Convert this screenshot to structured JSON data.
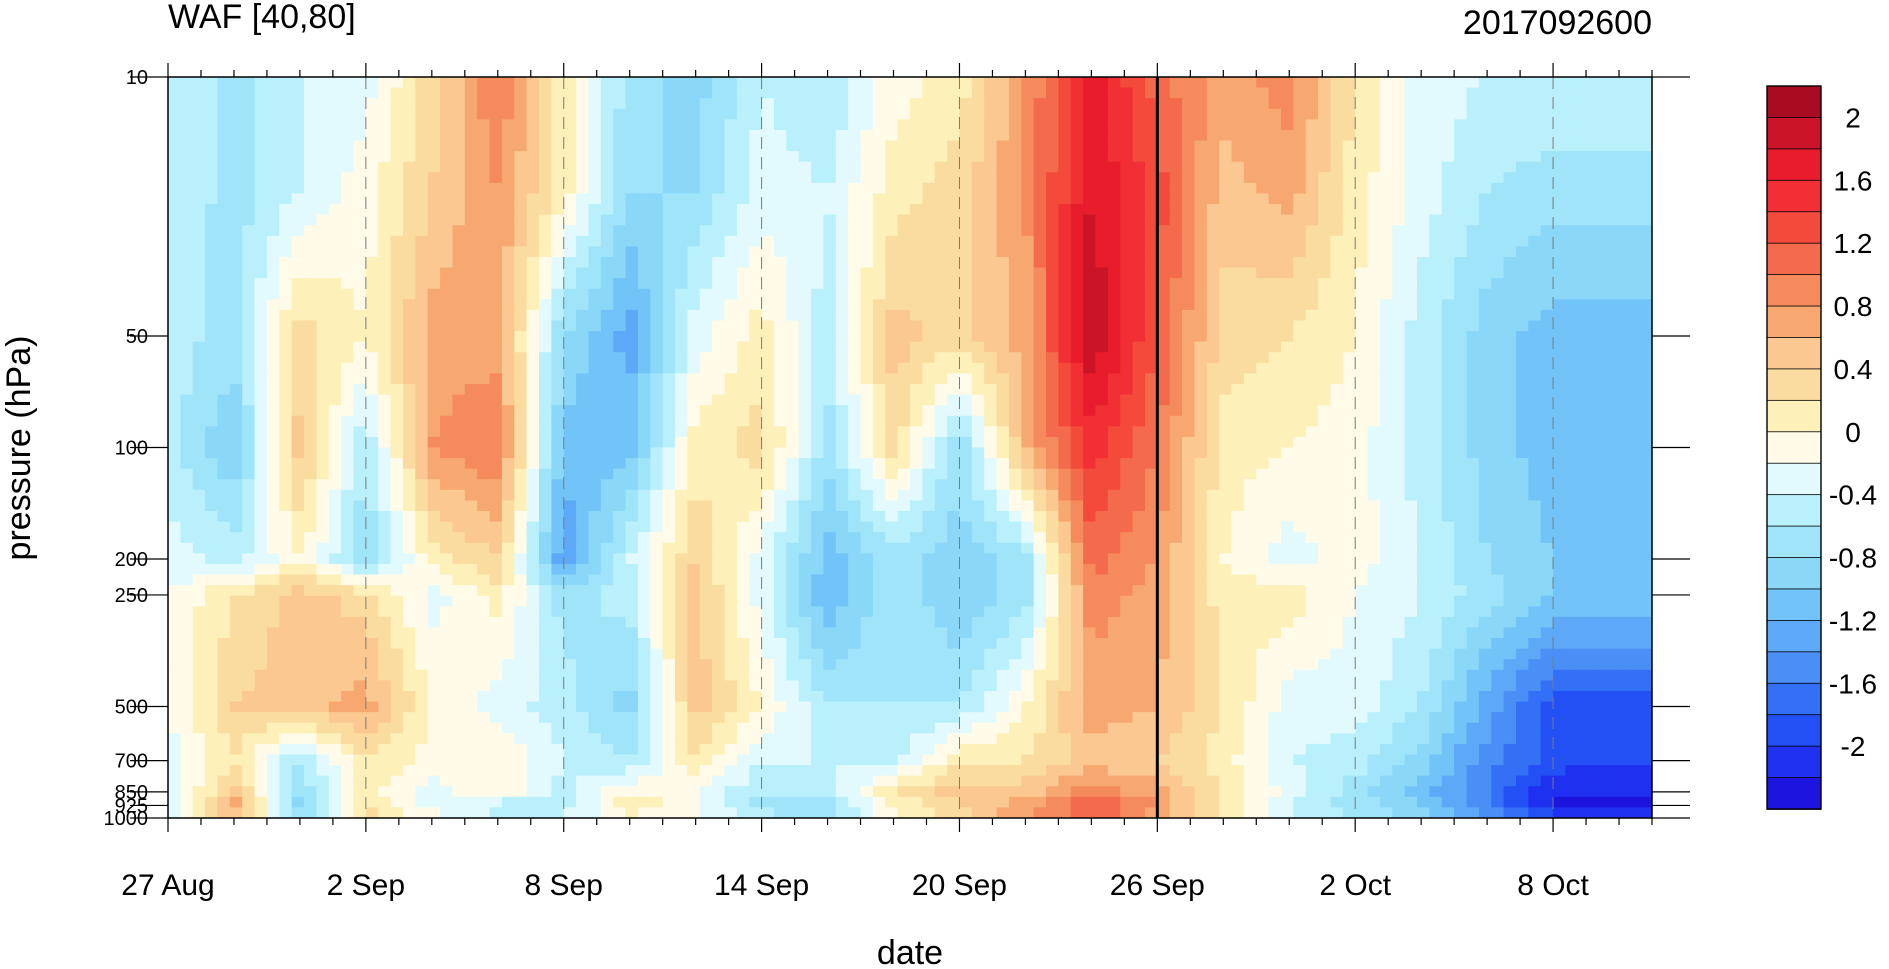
{
  "chart_data": {
    "type": "heatmap",
    "title": "WAF [40,80]",
    "subtitle": "2017092600",
    "xlabel": "date",
    "ylabel": "pressure (hPa)",
    "x_ticks": [
      "27 Aug",
      "2 Sep",
      "8 Sep",
      "14 Sep",
      "20 Sep",
      "26 Sep",
      "2 Oct",
      "8 Oct"
    ],
    "x_range_days_from_27_Aug": [
      0,
      45
    ],
    "y_ticks": [
      10,
      50,
      100,
      200,
      250,
      500,
      700,
      850,
      925,
      1000
    ],
    "y_tick_labels": [
      "10",
      "50",
      "100",
      "200",
      "250",
      "500",
      "700",
      "850",
      "925",
      "1000"
    ],
    "y_scale": "log (inverted)",
    "y_range": [
      1000,
      10
    ],
    "forecast_start_line": "26 Sep",
    "colorbar": {
      "levels": [
        -2.2,
        -2.0,
        -1.8,
        -1.6,
        -1.4,
        -1.2,
        -1.0,
        -0.8,
        -0.6,
        -0.4,
        -0.2,
        0.0,
        0.2,
        0.4,
        0.6,
        0.8,
        1.0,
        1.2,
        1.4,
        1.6,
        1.8,
        2.0,
        2.2
      ],
      "colors": [
        "#1e14e0",
        "#1f30f0",
        "#2350f5",
        "#3470f5",
        "#4a8ff5",
        "#5ea8f8",
        "#72c4f8",
        "#8ad7f8",
        "#a0e4fa",
        "#baf0fb",
        "#e2fafd",
        "#fffbe8",
        "#fdf0b8",
        "#fbdca0",
        "#fac890",
        "#f7a870",
        "#f58a5c",
        "#f46a4c",
        "#f34a3c",
        "#f12f34",
        "#e81c2c",
        "#cc1428",
        "#a80c20"
      ],
      "labels": [
        "-2",
        "-1.6",
        "-1.2",
        "-0.8",
        "-0.4",
        "0",
        "0.4",
        "0.8",
        "1.2",
        "1.6",
        "2"
      ]
    },
    "columns_days": [
      0,
      2,
      4,
      6,
      8,
      10,
      12,
      14,
      16,
      18,
      20,
      22,
      24,
      26,
      28,
      30,
      32,
      34,
      36,
      38,
      40,
      42,
      45
    ],
    "rows_pressure": [
      10,
      20,
      50,
      100,
      200,
      250,
      500,
      700,
      850,
      925,
      1000
    ],
    "values": [
      [
        -0.3,
        -0.6,
        -0.3,
        -0.2,
        0.4,
        1.1,
        0.2,
        -0.6,
        -0.8,
        -0.3,
        -0.5,
        0.0,
        0.2,
        0.9,
        1.8,
        1.2,
        0.8,
        1.0,
        0.3,
        -0.2,
        -0.3,
        -0.3,
        -0.3
      ],
      [
        -0.3,
        -0.6,
        -0.3,
        0.0,
        0.5,
        0.9,
        0.2,
        -0.7,
        -0.7,
        -0.2,
        -0.3,
        0.2,
        0.4,
        0.9,
        1.9,
        1.4,
        0.6,
        0.8,
        0.2,
        -0.2,
        -0.5,
        -0.6,
        -0.6
      ],
      [
        -0.4,
        -0.6,
        0.4,
        0.1,
        0.8,
        0.8,
        -0.7,
        -1.2,
        -0.2,
        0.2,
        -0.4,
        0.6,
        0.4,
        0.8,
        2.1,
        1.3,
        0.4,
        0.3,
        0.1,
        -0.4,
        -0.8,
        -1.0,
        -1.0
      ],
      [
        -0.4,
        -0.9,
        0.6,
        -0.5,
        0.9,
        1.1,
        -1.0,
        -1.0,
        0.2,
        0.4,
        -0.6,
        0.4,
        -0.7,
        0.7,
        1.6,
        1.1,
        0.2,
        0.1,
        0.0,
        -0.4,
        -0.8,
        -1.0,
        -1.0
      ],
      [
        -0.2,
        -0.4,
        0.1,
        -0.7,
        0.2,
        0.5,
        -1.3,
        -0.3,
        0.5,
        -0.2,
        -1.0,
        -0.6,
        -0.8,
        -0.6,
        1.2,
        0.9,
        0.1,
        -0.2,
        0.0,
        -0.3,
        -0.7,
        -0.9,
        -0.9
      ],
      [
        -0.1,
        0.3,
        0.6,
        0.4,
        -0.2,
        0.2,
        -0.6,
        -0.4,
        0.6,
        -0.2,
        -1.1,
        -0.5,
        -0.9,
        -0.6,
        1.0,
        0.8,
        0.2,
        0.2,
        -0.1,
        -0.3,
        -0.6,
        -0.9,
        -0.9
      ],
      [
        -0.1,
        0.5,
        0.6,
        0.8,
        0.1,
        -0.2,
        -0.4,
        -0.8,
        0.6,
        0.1,
        -0.5,
        -0.5,
        -0.5,
        0.1,
        0.8,
        0.7,
        0.3,
        -0.2,
        -0.2,
        -0.5,
        -1.2,
        -1.8,
        -1.8
      ],
      [
        -0.2,
        0.3,
        -0.5,
        0.3,
        0.0,
        0.1,
        -0.3,
        -0.5,
        0.3,
        -0.3,
        -0.3,
        -0.4,
        0.3,
        0.3,
        0.6,
        0.5,
        0.2,
        -0.3,
        -0.4,
        -0.8,
        -1.4,
        -1.8,
        -1.9
      ],
      [
        -0.3,
        0.6,
        -0.7,
        0.2,
        -0.2,
        0.1,
        -0.4,
        0.1,
        -0.1,
        -0.5,
        -0.4,
        0.3,
        0.6,
        0.6,
        1.0,
        0.8,
        0.3,
        -0.2,
        -0.6,
        -1.0,
        -1.5,
        -2.1,
        -2.1
      ],
      [
        -0.2,
        0.8,
        -0.8,
        0.3,
        -0.2,
        -0.4,
        -0.5,
        0.3,
        0.0,
        -0.6,
        -0.6,
        0.1,
        0.5,
        0.8,
        1.3,
        0.9,
        0.2,
        -0.3,
        -0.6,
        -0.9,
        -1.5,
        -2.1,
        -2.1
      ],
      [
        -0.2,
        0.6,
        -0.7,
        0.4,
        0.0,
        -0.3,
        -0.2,
        0.0,
        -0.1,
        -0.4,
        -0.5,
        0.0,
        0.4,
        0.9,
        1.2,
        0.8,
        0.3,
        -0.3,
        -0.5,
        -0.8,
        -1.2,
        -1.8,
        -1.8
      ]
    ]
  }
}
